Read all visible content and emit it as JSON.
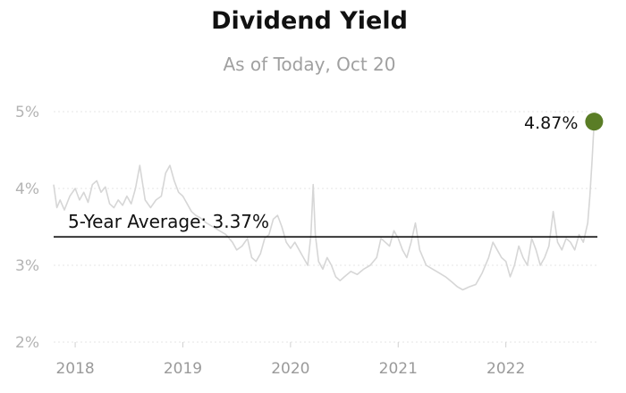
{
  "chart_data": {
    "type": "line",
    "title": "Dividend Yield",
    "subtitle": "As of Today, Oct 20",
    "xlabel": "",
    "ylabel": "",
    "y_ticks": [
      "5%",
      "4%",
      "3%",
      "2%"
    ],
    "x_ticks": [
      "2018",
      "2019",
      "2020",
      "2021",
      "2022"
    ],
    "ylim": [
      2.0,
      5.0
    ],
    "xlim": [
      2017.8,
      2022.85
    ],
    "grid": true,
    "line_color": "#d6d6d6",
    "endpoint_color": "#5a7d26",
    "reference_line": {
      "label": "5-Year Average: 3.37%",
      "value": 3.37
    },
    "end_label": "4.87%",
    "series": [
      {
        "x": [
          2017.8,
          2017.83,
          2017.86,
          2017.9,
          2017.95,
          2018.0,
          2018.04,
          2018.08,
          2018.12,
          2018.16,
          2018.2,
          2018.24,
          2018.28,
          2018.32,
          2018.36,
          2018.4,
          2018.44,
          2018.48,
          2018.52,
          2018.56,
          2018.6,
          2018.65,
          2018.7,
          2018.75,
          2018.8,
          2018.84,
          2018.88,
          2018.92,
          2018.96,
          2019.0,
          2019.04,
          2019.08,
          2019.12,
          2019.16,
          2019.22,
          2019.28,
          2019.34,
          2019.4,
          2019.46,
          2019.5,
          2019.55,
          2019.6,
          2019.64,
          2019.68,
          2019.72,
          2019.76,
          2019.8,
          2019.84,
          2019.88,
          2019.92,
          2019.96,
          2020.0,
          2020.04,
          2020.08,
          2020.12,
          2020.16,
          2020.19,
          2020.21,
          2020.23,
          2020.26,
          2020.3,
          2020.34,
          2020.38,
          2020.42,
          2020.46,
          2020.5,
          2020.56,
          2020.62,
          2020.68,
          2020.74,
          2020.8,
          2020.84,
          2020.88,
          2020.92,
          2020.96,
          2021.0,
          2021.04,
          2021.08,
          2021.12,
          2021.16,
          2021.2,
          2021.26,
          2021.32,
          2021.38,
          2021.44,
          2021.5,
          2021.55,
          2021.6,
          2021.66,
          2021.72,
          2021.78,
          2021.84,
          2021.88,
          2021.92,
          2021.96,
          2022.0,
          2022.04,
          2022.08,
          2022.12,
          2022.16,
          2022.2,
          2022.24,
          2022.28,
          2022.32,
          2022.36,
          2022.4,
          2022.44,
          2022.48,
          2022.52,
          2022.56,
          2022.6,
          2022.64,
          2022.68,
          2022.72,
          2022.76,
          2022.78,
          2022.8,
          2022.82
        ],
        "values": [
          4.05,
          3.75,
          3.85,
          3.72,
          3.9,
          4.0,
          3.85,
          3.95,
          3.82,
          4.05,
          4.1,
          3.95,
          4.02,
          3.8,
          3.75,
          3.85,
          3.78,
          3.9,
          3.8,
          4.0,
          4.3,
          3.85,
          3.75,
          3.85,
          3.9,
          4.2,
          4.3,
          4.1,
          3.95,
          3.9,
          3.8,
          3.7,
          3.65,
          3.62,
          3.55,
          3.5,
          3.45,
          3.4,
          3.3,
          3.2,
          3.25,
          3.35,
          3.1,
          3.05,
          3.15,
          3.35,
          3.4,
          3.6,
          3.65,
          3.5,
          3.3,
          3.22,
          3.3,
          3.2,
          3.1,
          3.0,
          3.4,
          4.05,
          3.4,
          3.05,
          2.95,
          3.1,
          3.0,
          2.85,
          2.8,
          2.85,
          2.92,
          2.88,
          2.95,
          3.0,
          3.1,
          3.35,
          3.3,
          3.25,
          3.45,
          3.35,
          3.2,
          3.1,
          3.3,
          3.55,
          3.2,
          3.0,
          2.95,
          2.9,
          2.85,
          2.78,
          2.72,
          2.68,
          2.72,
          2.75,
          2.9,
          3.1,
          3.3,
          3.2,
          3.1,
          3.05,
          2.85,
          3.0,
          3.25,
          3.1,
          3.0,
          3.35,
          3.2,
          3.0,
          3.1,
          3.25,
          3.7,
          3.3,
          3.2,
          3.35,
          3.3,
          3.2,
          3.4,
          3.3,
          3.55,
          3.9,
          4.35,
          4.87
        ]
      }
    ]
  }
}
